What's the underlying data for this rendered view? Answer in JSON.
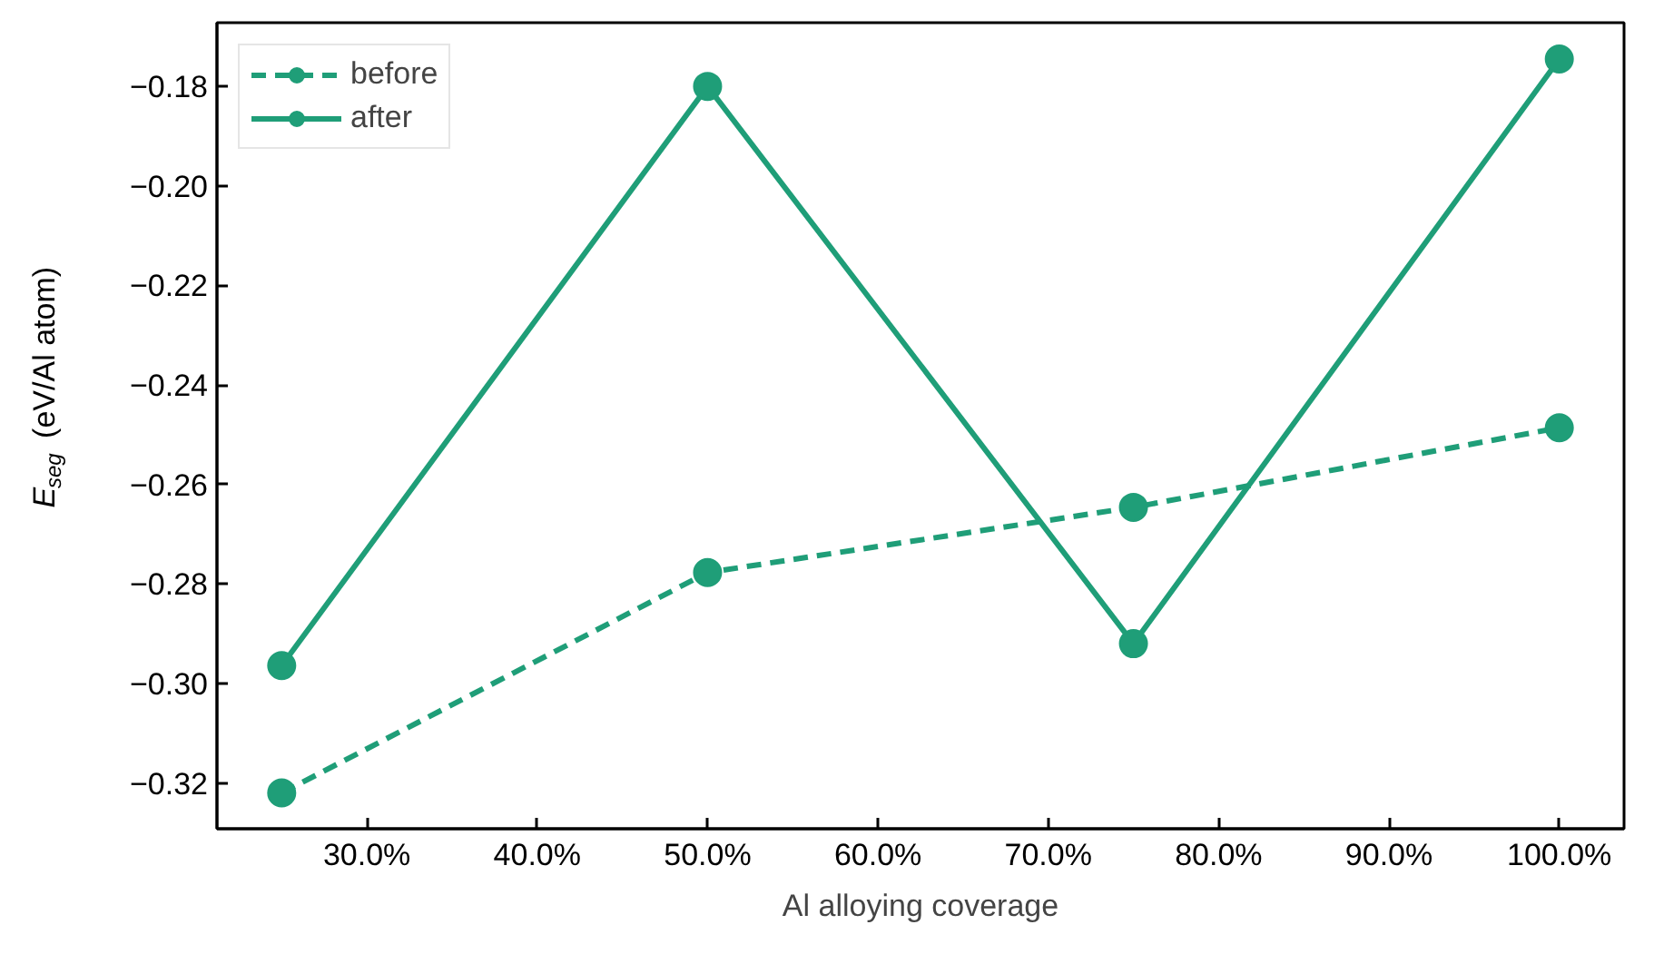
{
  "chart_data": {
    "type": "line",
    "xlabel": "Al alloying coverage",
    "ylabel": "E$_{seg}$ (eV/Al atom)",
    "x": [
      25,
      50,
      75,
      100
    ],
    "series": [
      {
        "name": "before",
        "color": "#1f9e78",
        "line_style": "dashed",
        "values": [
          -0.322,
          -0.2777,
          -0.2646,
          -0.2486
        ]
      },
      {
        "name": "after",
        "color": "#1f9e78",
        "line_style": "solid",
        "values": [
          -0.2964,
          -0.18,
          -0.292,
          -0.1745
        ]
      }
    ],
    "xlim": [
      21.2,
      103.8
    ],
    "ylim": [
      -0.3292,
      -0.1672
    ],
    "xticks": [
      {
        "value": 30,
        "label": "30.0%"
      },
      {
        "value": 40,
        "label": "40.0%"
      },
      {
        "value": 50,
        "label": "50.0%"
      },
      {
        "value": 60,
        "label": "60.0%"
      },
      {
        "value": 70,
        "label": "70.0%"
      },
      {
        "value": 80,
        "label": "80.0%"
      },
      {
        "value": 90,
        "label": "90.0%"
      },
      {
        "value": 100,
        "label": "100.0%"
      }
    ],
    "yticks": [
      {
        "value": -0.32,
        "label": "−0.32"
      },
      {
        "value": -0.3,
        "label": "−0.30"
      },
      {
        "value": -0.28,
        "label": "−0.28"
      },
      {
        "value": -0.26,
        "label": "−0.26"
      },
      {
        "value": -0.24,
        "label": "−0.24"
      },
      {
        "value": -0.22,
        "label": "−0.22"
      },
      {
        "value": -0.2,
        "label": "−0.20"
      },
      {
        "value": -0.18,
        "label": "−0.18"
      }
    ],
    "grid": false,
    "legend": "top left",
    "marker": "circle"
  }
}
